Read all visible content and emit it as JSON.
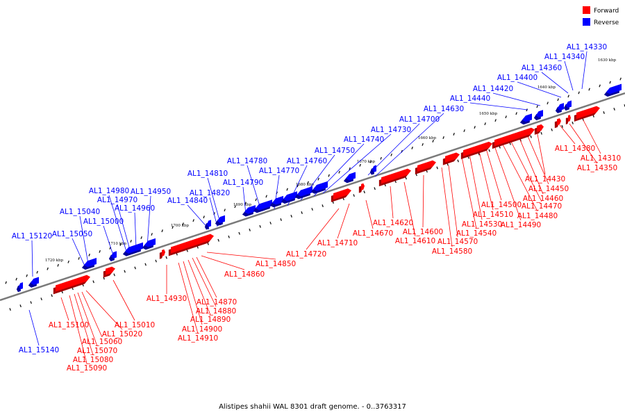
{
  "caption": "Alistipes shahii WAL 8301 draft genome. - 0..3763317",
  "legend": [
    {
      "label": "Forward",
      "color": "#ff0000"
    },
    {
      "label": "Reverse",
      "color": "#0000ff"
    }
  ],
  "colors": {
    "forward": "#ff0000",
    "reverse": "#0000ff",
    "axis": "#7a7a7a"
  },
  "ticks": [
    "1630 kbp",
    "1640 kbp",
    "1650 kbp",
    "1660 kbp",
    "1670 kbp",
    "1680 kbp",
    "1690 kbp",
    "1700 kbp",
    "1710 kbp",
    "1720 kbp"
  ],
  "reverse_labels": [
    "AL1_14330",
    "AL1_14340",
    "AL1_14360",
    "AL1_14400",
    "AL1_14420",
    "AL1_14440",
    "AL1_14630",
    "AL1_14700",
    "AL1_14730",
    "AL1_14740",
    "AL1_14750",
    "AL1_14760",
    "AL1_14770",
    "AL1_14780",
    "AL1_14790",
    "AL1_14810",
    "AL1_14820",
    "AL1_14840",
    "AL1_14950",
    "AL1_14960",
    "AL1_14970",
    "AL1_14980",
    "AL1_15000",
    "AL1_15040",
    "AL1_15050",
    "AL1_15120",
    "AL1_15140"
  ],
  "forward_labels": [
    "AL1_14310",
    "AL1_14350",
    "AL1_14380",
    "AL1_14430",
    "AL1_14450",
    "AL1_14460",
    "AL1_14470",
    "AL1_14480",
    "AL1_14490",
    "AL1_14500",
    "AL1_14510",
    "AL1_14530",
    "AL1_14540",
    "AL1_14570",
    "AL1_14580",
    "AL1_14600",
    "AL1_14610",
    "AL1_14620",
    "AL1_14670",
    "AL1_14710",
    "AL1_14720",
    "AL1_14850",
    "AL1_14860",
    "AL1_14870",
    "AL1_14880",
    "AL1_14890",
    "AL1_14900",
    "AL1_14910",
    "AL1_14930",
    "AL1_15010",
    "AL1_15020",
    "AL1_15060",
    "AL1_15070",
    "AL1_15080",
    "AL1_15090",
    "AL1_15100"
  ]
}
